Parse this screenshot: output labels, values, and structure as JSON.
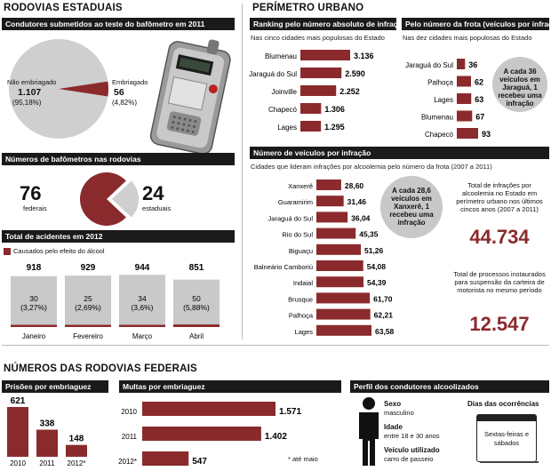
{
  "colors": {
    "maroon": "#8b2a2c",
    "dark": "#1a1a1a",
    "gray": "#c9c9c9"
  },
  "rodovias_estaduais": {
    "title": "RODOVIAS ESTADUAIS",
    "condutores": {
      "header": "Condutores submetidos ao teste do bafômetro em 2011",
      "nao_label": "Não embriagado",
      "nao_value": "1.107",
      "nao_pct": "(95,18%)",
      "emb_label": "Embriagado",
      "emb_value": "56",
      "emb_pct": "(4,82%)"
    },
    "bafometros": {
      "header": "Números de bafômetros nas rodovias",
      "federais_value": "76",
      "federais_label": "federais",
      "estaduais_value": "24",
      "estaduais_label": "estaduais"
    },
    "acidentes": {
      "header": "Total de acidentes em 2012",
      "legend": "Causados pelo efeito do álcool"
    }
  },
  "perimetro_urbano": {
    "title": "PERÍMETRO URBANO",
    "ranking": {
      "header": "Ranking pelo número absoluto de infrações",
      "sub": "Nas cinco cidades mais populosas do Estado"
    },
    "frota": {
      "header": "Pelo número da frota (veículos por infração)",
      "sub": "Nas dez cidades mais populosas do Estado",
      "bubble": "A cada 36 veículos em Jaraguá, 1 recebeu uma infração"
    },
    "veiculos": {
      "header": "Número de veículos por infração",
      "sub": "Cidades que lideram infrações por alcoolemia pelo número da frota  (2007 a 2011)",
      "bubble": "A cada 28,6 veículos em Xanxerê, 1 recebeu uma infração"
    },
    "total_infracoes": {
      "text": "Total de infrações por alcoolemia no Estado em perímetro urbano nos últimos cincos anos (2007 a 2011)",
      "value": "44.734"
    },
    "total_processos": {
      "text": "Total de processos instaurados para suspensão da carteira de motorista no mesmo período",
      "value": "12.547"
    }
  },
  "federais": {
    "title": "NÚMEROS DAS RODOVIAS FEDERAIS",
    "prisoes_header": "Prisões por embriaguez",
    "multas_header": "Multas por embriaguez",
    "multas_note": "* até maio",
    "perfil": {
      "header": "Perfil dos condutores alcoolizados",
      "sexo_label": "Sexo",
      "sexo_value": "masculino",
      "idade_label": "Idade",
      "idade_value": "entre 18 e 30 anos",
      "veiculo_label": "Veículo utilizado",
      "veiculo_value": "carro de passeio",
      "dias_label": "Dias das ocorrências",
      "dias_value": "Sextas-feiras e sábados"
    }
  },
  "chart_data": [
    {
      "type": "pie",
      "title": "Condutores submetidos ao teste do bafômetro em 2011",
      "categories": [
        "Não embriagado",
        "Embriagado"
      ],
      "values": [
        1107,
        56
      ],
      "percent": [
        95.18,
        4.82
      ]
    },
    {
      "type": "pie",
      "title": "Números de bafômetros nas rodovias",
      "categories": [
        "federais",
        "estaduais"
      ],
      "values": [
        76,
        24
      ]
    },
    {
      "type": "bar",
      "title": "Total de acidentes em 2012",
      "categories": [
        "Janeiro",
        "Fevereiro",
        "Março",
        "Abril"
      ],
      "series": [
        {
          "name": "Total",
          "values": [
            918,
            929,
            944,
            851
          ],
          "labels": [
            "918",
            "929",
            "944",
            "851"
          ]
        },
        {
          "name": "Causados pelo efeito do álcool",
          "values": [
            30,
            25,
            34,
            50
          ],
          "labels": [
            "30",
            "25",
            "34",
            "50"
          ],
          "percent_labels": [
            "(3,27%)",
            "(2,69%)",
            "(3,6%)",
            "(5,88%)"
          ]
        }
      ]
    },
    {
      "type": "bar",
      "orientation": "horizontal",
      "title": "Ranking pelo número absoluto de infrações",
      "categories": [
        "Blumenau",
        "Jaraguá do Sul",
        "Joinville",
        "Chapecó",
        "Lages"
      ],
      "values": [
        3136,
        2590,
        2252,
        1306,
        1295
      ],
      "labels": [
        "3.136",
        "2.590",
        "2.252",
        "1.306",
        "1.295"
      ]
    },
    {
      "type": "bar",
      "orientation": "horizontal",
      "title": "Pelo número da frota (veículos por infração)",
      "categories": [
        "Jaraguá do Sul",
        "Palhoça",
        "Lages",
        "Blumenau",
        "Chapecó"
      ],
      "values": [
        36,
        62,
        63,
        67,
        93
      ],
      "labels": [
        "36",
        "62",
        "63",
        "67",
        "93"
      ]
    },
    {
      "type": "bar",
      "orientation": "horizontal",
      "title": "Número de veículos por infração",
      "categories": [
        "Xanxerê",
        "Guaramirim",
        "Jaraguá do Sul",
        "Rio do Sul",
        "Biguaçu",
        "Balneário Camboriú",
        "Indaial",
        "Brusque",
        "Palhoça",
        "Lages"
      ],
      "values": [
        28.6,
        31.46,
        36.04,
        45.35,
        51.26,
        54.08,
        54.39,
        61.7,
        62.21,
        63.58
      ],
      "labels": [
        "28,60",
        "31,46",
        "36,04",
        "45,35",
        "51,26",
        "54,08",
        "54,39",
        "61,70",
        "62,21",
        "63,58"
      ]
    },
    {
      "type": "bar",
      "title": "Prisões por embriaguez",
      "categories": [
        "2010",
        "2011",
        "2012*"
      ],
      "values": [
        621,
        338,
        148
      ],
      "labels": [
        "621",
        "338",
        "148"
      ]
    },
    {
      "type": "bar",
      "orientation": "horizontal",
      "title": "Multas por embriaguez",
      "categories": [
        "2010",
        "2011",
        "2012*"
      ],
      "values": [
        1571,
        1402,
        547
      ],
      "labels": [
        "1.571",
        "1.402",
        "547"
      ]
    }
  ]
}
